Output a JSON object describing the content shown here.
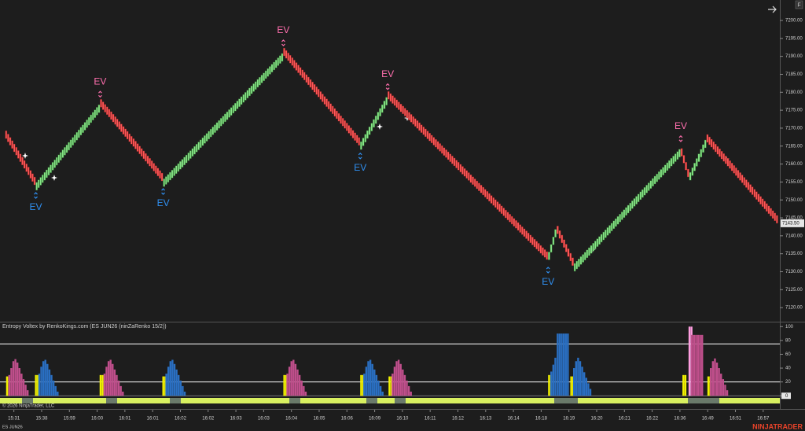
{
  "chart_data": [
    {
      "type": "renko",
      "x": [
        -0.31,
        0.79,
        3.11,
        5.38,
        9.71,
        12.48,
        13.47,
        19.25,
        19.56,
        20.18,
        24.03,
        24.34,
        24.96,
        27.54
      ],
      "values": [
        7168,
        7154.2,
        7176.5,
        7155.3,
        7190.8,
        7165.2,
        7178.6,
        7133.4,
        7141.8,
        7131.7,
        7164.1,
        7156.4,
        7166.7,
        7143.5
      ],
      "markers": [
        null,
        "EV",
        "EV",
        "EV",
        "EV",
        "EV",
        "EV",
        "EV",
        null,
        null,
        "EV",
        null,
        null,
        null
      ],
      "last_label": "7143.50",
      "up_color": "#86e586",
      "down_color": "#ff5757",
      "marker_top_color": "#ff6fae",
      "marker_bottom_color": "#2f8ff0",
      "xlim": [
        -0.5,
        27.6
      ],
      "xticks": [
        {
          "value": 0,
          "label": "15:31"
        },
        {
          "value": 1,
          "label": "15:38"
        },
        {
          "value": 2,
          "label": "15:59"
        },
        {
          "value": 3,
          "label": "16:00"
        },
        {
          "value": 4,
          "label": "16:01"
        },
        {
          "value": 5,
          "label": "16:01"
        },
        {
          "value": 6,
          "label": "16:02"
        },
        {
          "value": 7,
          "label": "16:02"
        },
        {
          "value": 8,
          "label": "16:03"
        },
        {
          "value": 9,
          "label": "16:03"
        },
        {
          "value": 10,
          "label": "16:04"
        },
        {
          "value": 11,
          "label": "16:05"
        },
        {
          "value": 12,
          "label": "16:06"
        },
        {
          "value": 13,
          "label": "16:09"
        },
        {
          "value": 14,
          "label": "16:10"
        },
        {
          "value": 15,
          "label": "16:11"
        },
        {
          "value": 16,
          "label": "16:12"
        },
        {
          "value": 17,
          "label": "16:13"
        },
        {
          "value": 18,
          "label": "16:14"
        },
        {
          "value": 19,
          "label": "16:18"
        },
        {
          "value": 20,
          "label": "16:19"
        },
        {
          "value": 21,
          "label": "16:20"
        },
        {
          "value": 22,
          "label": "16:21"
        },
        {
          "value": 23,
          "label": "16:22"
        },
        {
          "value": 24,
          "label": "16:36"
        },
        {
          "value": 25,
          "label": "16:49"
        },
        {
          "value": 26,
          "label": "16:51"
        },
        {
          "value": 27,
          "label": "16:57"
        }
      ],
      "ylim": [
        7116.3,
        7205.7
      ],
      "yticks": [
        {
          "value": 7120,
          "label": "7120.00"
        },
        {
          "value": 7125,
          "label": "7125.00"
        },
        {
          "value": 7130,
          "label": "7130.00"
        },
        {
          "value": 7135,
          "label": "7135.00"
        },
        {
          "value": 7140,
          "label": "7140.00"
        },
        {
          "value": 7145,
          "label": "7145.00"
        },
        {
          "value": 7150,
          "label": "7150.00"
        },
        {
          "value": 7155,
          "label": "7155.00"
        },
        {
          "value": 7160,
          "label": "7160.00"
        },
        {
          "value": 7165,
          "label": "7165.00"
        },
        {
          "value": 7170,
          "label": "7170.00"
        },
        {
          "value": 7175,
          "label": "7175.00"
        },
        {
          "value": 7180,
          "label": "7180.00"
        },
        {
          "value": 7185,
          "label": "7185.00"
        },
        {
          "value": 7190,
          "label": "7190.00"
        },
        {
          "value": 7195,
          "label": "7195.00"
        },
        {
          "value": 7200,
          "label": "7200.00"
        }
      ]
    },
    {
      "type": "bar",
      "title": "Entropy Voltex by RenkoKings.com (ES JUN26 (ninZaRenko 15/2))",
      "ylim": [
        -10,
        106
      ],
      "yticks": [
        0,
        20,
        40,
        60,
        80,
        100
      ],
      "levels": [
        75,
        20
      ],
      "bursts": [
        {
          "color": "#f2f200",
          "x": -0.28,
          "values": [
            28,
            28
          ]
        },
        {
          "color": "#c04f8c",
          "x": -0.2,
          "values": [
            30,
            40,
            50,
            53,
            48,
            40,
            32,
            24,
            16,
            8
          ]
        },
        {
          "color": "#f2f200",
          "x": 0.76,
          "values": [
            30,
            30
          ]
        },
        {
          "color": "#2a6fc2",
          "x": 0.88,
          "values": [
            32,
            42,
            50,
            52,
            46,
            38,
            30,
            22,
            14,
            6
          ]
        },
        {
          "color": "#f2f200",
          "x": 3.09,
          "values": [
            30,
            30
          ]
        },
        {
          "color": "#c04f8c",
          "x": 3.23,
          "values": [
            32,
            42,
            50,
            52,
            46,
            38,
            30,
            22,
            14,
            6
          ]
        },
        {
          "color": "#f2f200",
          "x": 5.35,
          "values": [
            28,
            28
          ]
        },
        {
          "color": "#2a6fc2",
          "x": 5.46,
          "values": [
            32,
            42,
            50,
            52,
            46,
            38,
            30,
            22,
            14,
            6
          ]
        },
        {
          "color": "#f2f200",
          "x": 9.71,
          "values": [
            30,
            30
          ]
        },
        {
          "color": "#c04f8c",
          "x": 9.82,
          "values": [
            32,
            42,
            50,
            52,
            46,
            38,
            30,
            22,
            14,
            6
          ]
        },
        {
          "color": "#f2f200",
          "x": 12.48,
          "values": [
            30,
            30
          ]
        },
        {
          "color": "#2a6fc2",
          "x": 12.59,
          "values": [
            32,
            42,
            50,
            52,
            46,
            38,
            30,
            22,
            14,
            6
          ]
        },
        {
          "color": "#f2f200",
          "x": 13.5,
          "values": [
            28,
            28
          ]
        },
        {
          "color": "#c04f8c",
          "x": 13.61,
          "values": [
            32,
            42,
            50,
            52,
            46,
            38,
            30,
            22,
            14,
            6
          ]
        },
        {
          "color": "#f2f200",
          "x": 19.25,
          "values": [
            30,
            30
          ]
        },
        {
          "color": "#2a6fc2",
          "x": 19.33,
          "values": [
            35,
            45,
            55
          ]
        },
        {
          "color": "#2a6fc2",
          "x": 19.56,
          "values": [
            90,
            90,
            90,
            90,
            90,
            90
          ]
        },
        {
          "color": "#f2f200",
          "x": 20.05,
          "values": [
            28,
            28
          ]
        },
        {
          "color": "#2a6fc2",
          "x": 20.15,
          "values": [
            40,
            50,
            55,
            50,
            42,
            34,
            26,
            18,
            10
          ]
        },
        {
          "color": "#f2f200",
          "x": 24.09,
          "values": [
            30,
            30
          ]
        },
        {
          "color": "#ff9ee0",
          "x": 24.31,
          "values": [
            100,
            100
          ]
        },
        {
          "color": "#c04f8c",
          "x": 24.4,
          "values": [
            88,
            88,
            88,
            88,
            88,
            88
          ]
        },
        {
          "color": "#f2f200",
          "x": 24.99,
          "values": [
            28,
            28
          ]
        },
        {
          "color": "#c04f8c",
          "x": 25.08,
          "values": [
            40,
            50,
            54,
            48,
            40,
            32,
            24,
            16,
            8
          ]
        }
      ]
    }
  ],
  "ui": {
    "copyright": "© 2026 NinjaTrader, LLC",
    "instrument": "ES JUN26",
    "brand": "NINJATRADER",
    "corner": "F"
  }
}
